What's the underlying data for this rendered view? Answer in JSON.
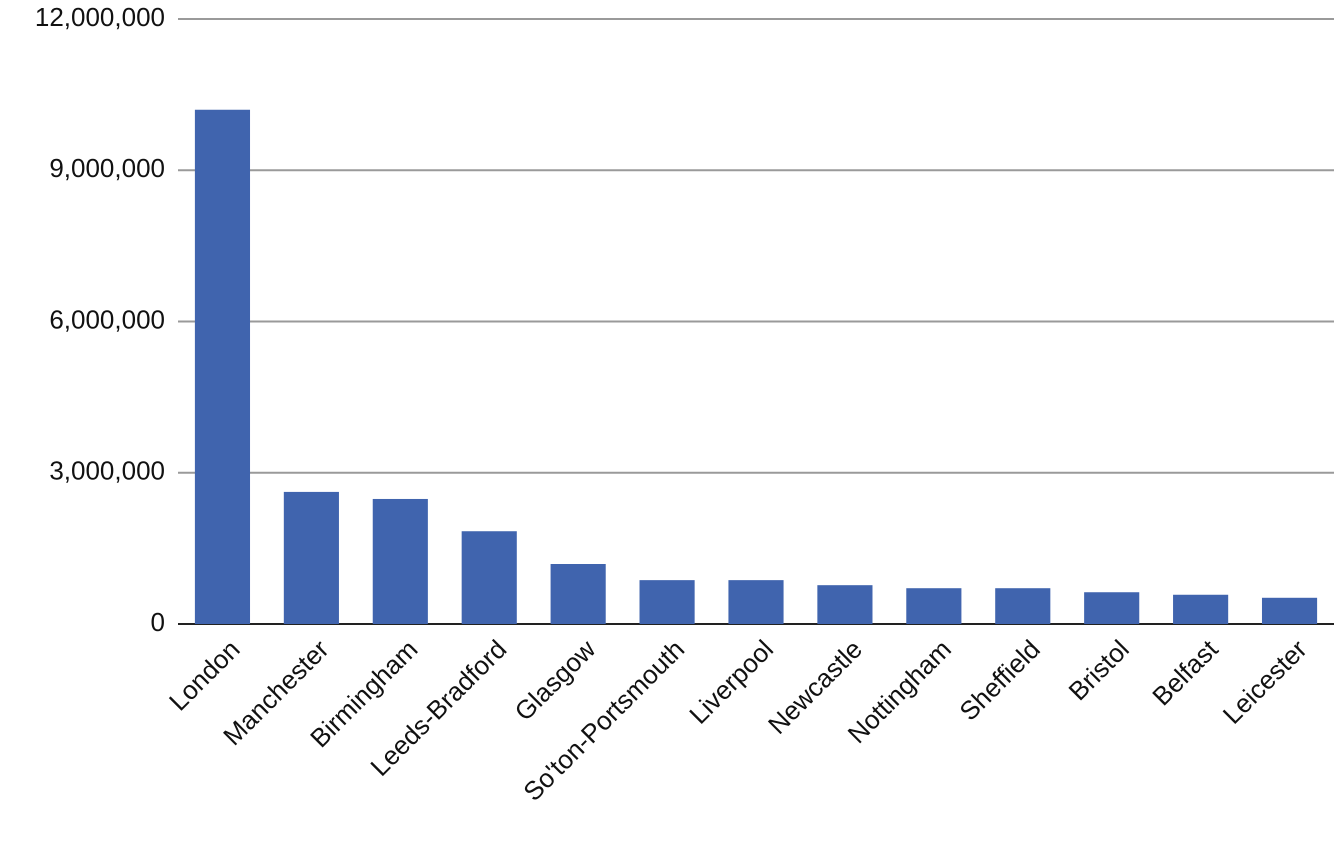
{
  "chart_data": {
    "type": "bar",
    "categories": [
      "London",
      "Manchester",
      "Birmingham",
      "Leeds-Bradford",
      "Glasgow",
      "So'ton-Portsmouth",
      "Liverpool",
      "Newcastle",
      "Nottingham",
      "Sheffield",
      "Bristol",
      "Belfast",
      "Leicester"
    ],
    "values": [
      10200000,
      2620000,
      2480000,
      1840000,
      1190000,
      870000,
      870000,
      770000,
      710000,
      710000,
      630000,
      580000,
      520000
    ],
    "color": "#4064ae",
    "ylim": [
      0,
      12000000
    ],
    "yticks": [
      0,
      {
        "value": 3000000,
        "label": "3,000,000"
      },
      {
        "value": 6000000,
        "label": "6,000,000"
      },
      {
        "value": 9000000,
        "label": "9,000,000"
      },
      {
        "value": 12000000,
        "label": "12,000,000"
      }
    ],
    "grid": true
  }
}
